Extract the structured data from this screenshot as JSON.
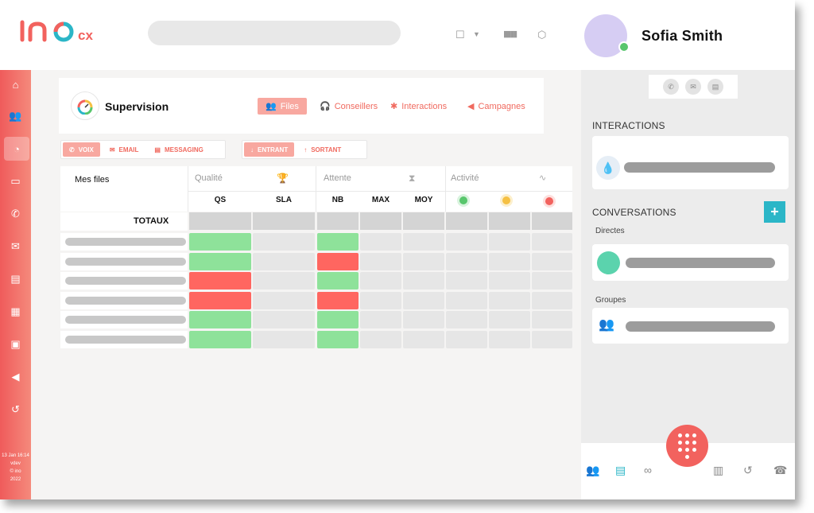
{
  "header": {
    "logo_text": "ino",
    "logo_sub": "cx",
    "user_name": "Sofia Smith"
  },
  "sidebar": {
    "items": [
      "home-icon",
      "users-icon",
      "gauge-icon",
      "inbox-icon",
      "phone-icon",
      "mail-icon",
      "chat-icon",
      "contacts-icon",
      "briefcase-icon",
      "megaphone-icon",
      "history-icon"
    ],
    "footer": [
      "13 Jan 16:14",
      "vdev",
      "© ino",
      "2022"
    ]
  },
  "supervision": {
    "title": "Supervision",
    "tabs": [
      "Files",
      "Conseillers",
      "Interactions",
      "Campagnes"
    ]
  },
  "filters": {
    "channels": [
      "VOIX",
      "EMAIL",
      "MESSAGING"
    ],
    "directions": [
      "ENTRANT",
      "SORTANT"
    ]
  },
  "table": {
    "title": "Mes files",
    "groups": [
      "Qualité",
      "Attente",
      "Activité"
    ],
    "columns": [
      "QS",
      "SLA",
      "NB",
      "MAX",
      "MOY"
    ],
    "totals_label": "TOTAUX",
    "rows": [
      {
        "qs": "green",
        "nb": "green"
      },
      {
        "qs": "green",
        "nb": "red"
      },
      {
        "qs": "red",
        "nb": "green"
      },
      {
        "qs": "red",
        "nb": "red"
      },
      {
        "qs": "green",
        "nb": "green"
      },
      {
        "qs": "green",
        "nb": "green"
      }
    ]
  },
  "right_panel": {
    "interactions_label": "INTERACTIONS",
    "conversations_label": "CONVERSATIONS",
    "directes_label": "Directes",
    "groupes_label": "Groupes",
    "add_label": "+"
  },
  "colors": {
    "accent": "#f06a5f",
    "green": "#8ee29a",
    "red": "#ff6660",
    "teal": "#2bb6c7"
  }
}
